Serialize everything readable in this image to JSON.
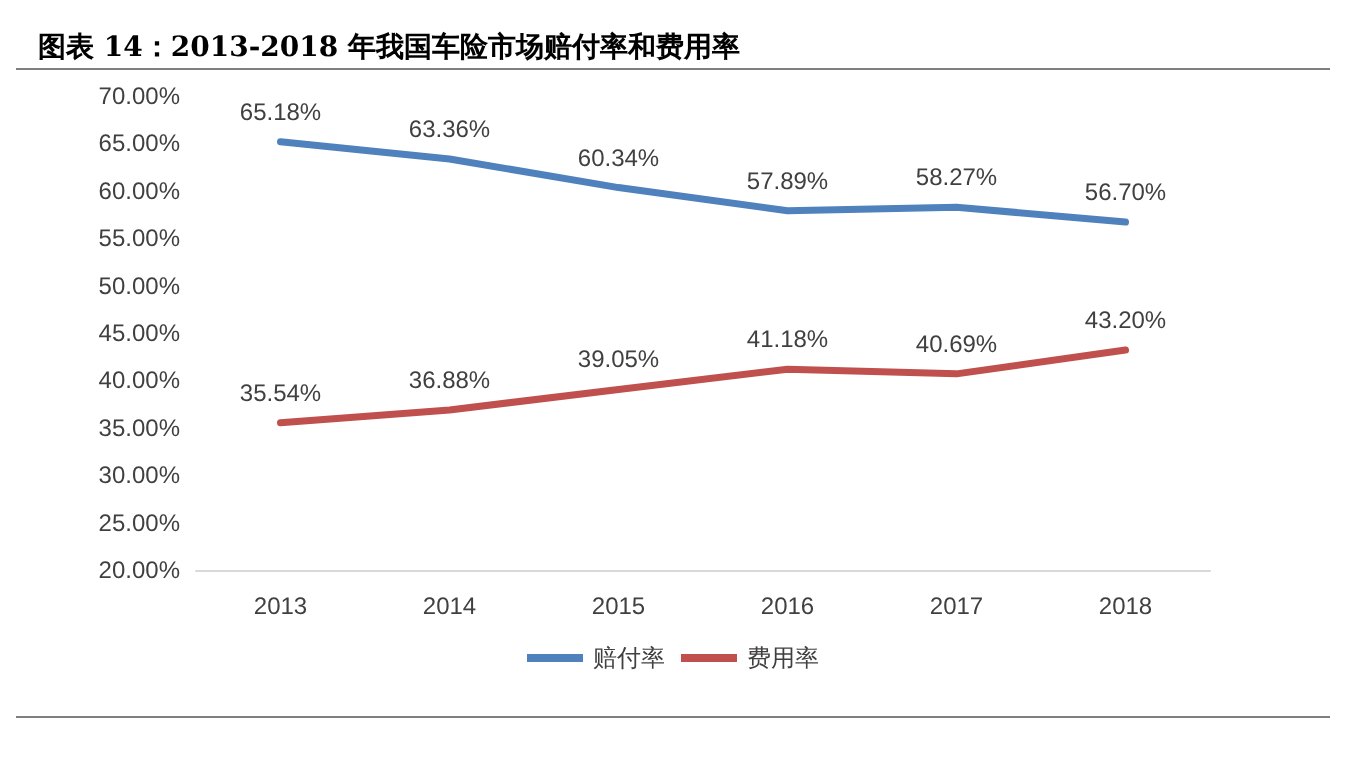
{
  "chart_data": {
    "type": "line",
    "title": "图表 14：2013-2018 年我国车险市场赔付率和费用率",
    "categories": [
      "2013",
      "2014",
      "2015",
      "2016",
      "2017",
      "2018"
    ],
    "series": [
      {
        "name": "赔付率",
        "color": "#4f81bd",
        "values": [
          65.18,
          63.36,
          60.34,
          57.89,
          58.27,
          56.7
        ],
        "value_labels": [
          "65.18%",
          "63.36%",
          "60.34%",
          "57.89%",
          "58.27%",
          "56.70%"
        ]
      },
      {
        "name": "费用率",
        "color": "#c0504d",
        "values": [
          35.54,
          36.88,
          39.05,
          41.18,
          40.69,
          43.2
        ],
        "value_labels": [
          "35.54%",
          "36.88%",
          "39.05%",
          "41.18%",
          "40.69%",
          "43.20%"
        ]
      }
    ],
    "ylim": [
      20,
      70
    ],
    "yticks": [
      {
        "value": 20,
        "label": "20.00%"
      },
      {
        "value": 25,
        "label": "25.00%"
      },
      {
        "value": 30,
        "label": "30.00%"
      },
      {
        "value": 35,
        "label": "35.00%"
      },
      {
        "value": 40,
        "label": "40.00%"
      },
      {
        "value": 45,
        "label": "45.00%"
      },
      {
        "value": 50,
        "label": "50.00%"
      },
      {
        "value": 55,
        "label": "55.00%"
      },
      {
        "value": 60,
        "label": "60.00%"
      },
      {
        "value": 65,
        "label": "65.00%"
      },
      {
        "value": 70,
        "label": "70.00%"
      }
    ],
    "grid": false,
    "legend": "bottom",
    "marker": "none",
    "line_style": "solid"
  }
}
